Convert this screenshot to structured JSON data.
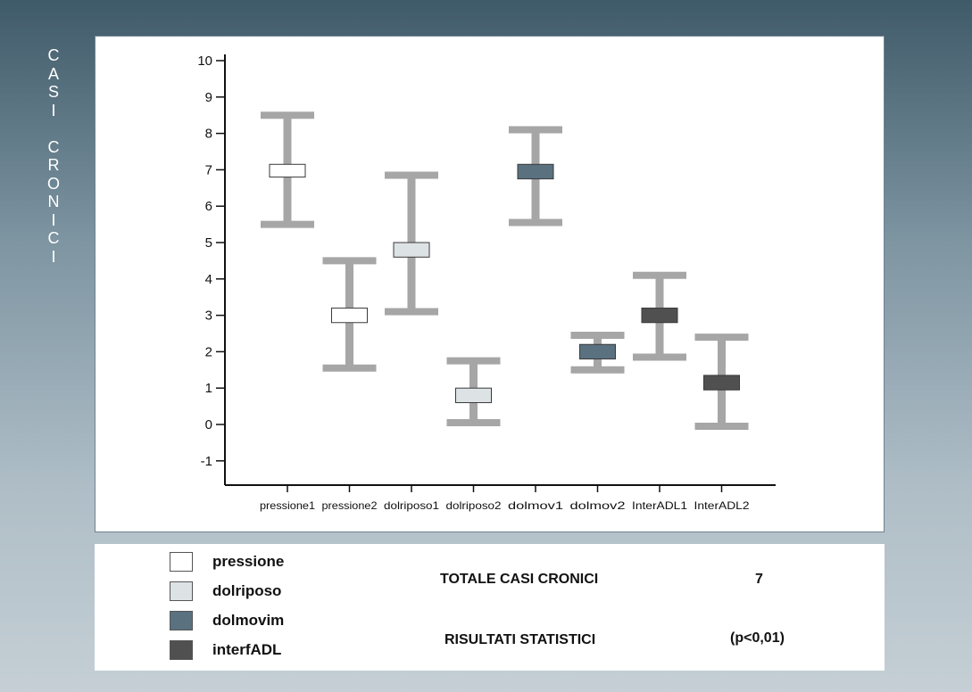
{
  "side_title": [
    "C",
    "A",
    "S",
    "I",
    "",
    "C",
    "R",
    "O",
    "N",
    "I",
    "C",
    "I"
  ],
  "chart_data": {
    "type": "box",
    "y_range": [
      -1.5,
      10
    ],
    "y_ticks": [
      "10",
      "9",
      "8",
      "7",
      "6",
      "5",
      "4",
      "3",
      "2",
      "1",
      "0",
      "-1"
    ],
    "y_tick_values": [
      10,
      9,
      8,
      7,
      6,
      5,
      4,
      3,
      2,
      1,
      0,
      -1
    ],
    "categories": [
      "pressione1",
      "pressione2",
      "dolriposo1",
      "dolriposo2",
      "dolmov1",
      "dolmov2",
      "InterADL1",
      "InterADL2"
    ],
    "boxes": [
      {
        "category": "pressione1",
        "series": "pressione",
        "whisker_low": 5.5,
        "whisker_high": 8.5,
        "box_low": 6.8,
        "box_high": 7.15
      },
      {
        "category": "pressione2",
        "series": "pressione",
        "whisker_low": 1.55,
        "whisker_high": 4.5,
        "box_low": 2.8,
        "box_high": 3.2
      },
      {
        "category": "dolriposo1",
        "series": "dolriposo",
        "whisker_low": 3.1,
        "whisker_high": 6.85,
        "box_low": 4.6,
        "box_high": 5.0
      },
      {
        "category": "dolriposo2",
        "series": "dolriposo",
        "whisker_low": 0.05,
        "whisker_high": 1.75,
        "box_low": 0.6,
        "box_high": 1.0
      },
      {
        "category": "dolmov1",
        "series": "dolmovim",
        "whisker_low": 5.55,
        "whisker_high": 8.1,
        "box_low": 6.75,
        "box_high": 7.15
      },
      {
        "category": "dolmov2",
        "series": "dolmovim",
        "whisker_low": 1.5,
        "whisker_high": 2.45,
        "box_low": 1.8,
        "box_high": 2.2
      },
      {
        "category": "InterADL1",
        "series": "interfADL",
        "whisker_low": 1.85,
        "whisker_high": 4.1,
        "box_low": 2.8,
        "box_high": 3.2
      },
      {
        "category": "InterADL2",
        "series": "interfADL",
        "whisker_low": -0.05,
        "whisker_high": 2.4,
        "box_low": 0.95,
        "box_high": 1.35
      }
    ]
  },
  "legend": [
    {
      "label": "pressione",
      "color": "#ffffff"
    },
    {
      "label": "dolriposo",
      "color": "#dde2e5"
    },
    {
      "label": "dolmovim",
      "color": "#5a7180"
    },
    {
      "label": "interfADL",
      "color": "#505050"
    }
  ],
  "colors": {
    "whisker": "#a6a6a6",
    "axis": "#111111"
  },
  "stats": {
    "totale_label": "TOTALE CASI CRONICI",
    "totale_value": "7",
    "risultati_label": "RISULTATI STATISTICI",
    "risultati_value": "(p<0,01)"
  }
}
